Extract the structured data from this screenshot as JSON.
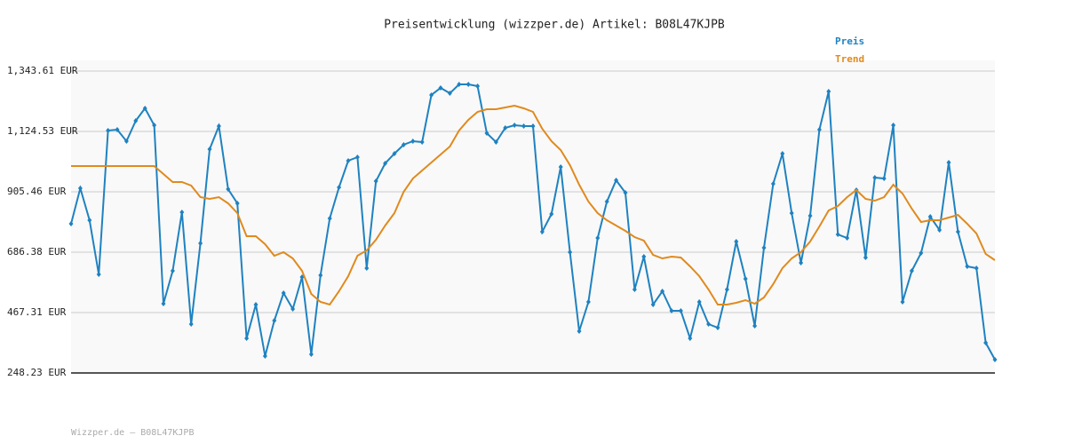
{
  "chart_data": {
    "type": "line",
    "title": "Preisentwicklung (wizzper.de) Artikel: B08L47KJPB",
    "footer": "Wizzper.de – B08L47KJPB",
    "ylim": [
      248.23,
      1343.61
    ],
    "yticks": [
      {
        "value": 248.23,
        "label": "248.23 EUR"
      },
      {
        "value": 467.31,
        "label": "467.31 EUR"
      },
      {
        "value": 686.38,
        "label": "686.38 EUR"
      },
      {
        "value": 905.46,
        "label": "905.46 EUR"
      },
      {
        "value": 1124.53,
        "label": "1,124.53 EUR"
      },
      {
        "value": 1343.61,
        "label": "1,343.61 EUR"
      }
    ],
    "grid": true,
    "legend": "top-right",
    "series": [
      {
        "name": "Preis",
        "color": "#1f82c0",
        "markers": true,
        "values": [
          789.5,
          918.3,
          802.4,
          605.8,
          1127.7,
          1130.9,
          1089.1,
          1163.2,
          1208.3,
          1147.1,
          499.5,
          618.7,
          831.4,
          425.4,
          718.6,
          1060.1,
          1143.9,
          915.1,
          863.6,
          373.9,
          496.3,
          309.4,
          438.3,
          538.2,
          480.2,
          596.2,
          315.9,
          602.6,
          808.8,
          921.6,
          1018.2,
          1031.1,
          628.4,
          944.1,
          1008.5,
          1044.0,
          1076.2,
          1089.1,
          1085.9,
          1256.6,
          1282.4,
          1263.1,
          1295.3,
          1295.3,
          1288.8,
          1118.1,
          1085.9,
          1137.4,
          1147.1,
          1143.9,
          1143.9,
          760.5,
          824.9,
          995.7,
          686.4,
          399.6,
          506.0,
          737.9,
          870.0,
          947.3,
          902.2,
          551.1,
          670.3,
          496.3,
          544.6,
          473.7,
          473.7,
          373.9,
          506.0,
          425.4,
          412.5,
          551.1,
          725.0,
          589.7,
          419.0,
          702.5,
          934.4,
          1044.0,
          828.1,
          647.7,
          818.5,
          1130.9,
          1269.5,
          750.8,
          737.9,
          911.9,
          667.0,
          957.0,
          953.8,
          1147.1,
          506.0,
          618.7,
          683.1,
          815.2,
          766.9,
          1011.7,
          760.5,
          634.8,
          628.4,
          357.7,
          296.5
        ]
      },
      {
        "name": "Trend",
        "color": "#e08a1e",
        "markers": false,
        "values": [
          998.9,
          998.9,
          998.9,
          998.9,
          998.9,
          998.9,
          998.9,
          998.9,
          998.9,
          998.9,
          969.9,
          940.9,
          940.9,
          928.0,
          886.1,
          879.7,
          886.1,
          863.6,
          828.1,
          744.3,
          744.3,
          715.4,
          673.5,
          686.4,
          663.8,
          618.7,
          534.9,
          506.0,
          496.3,
          544.6,
          599.4,
          673.5,
          692.8,
          731.5,
          783.0,
          828.1,
          905.4,
          953.8,
          982.7,
          1011.7,
          1040.8,
          1069.7,
          1127.7,
          1166.4,
          1195.4,
          1205.0,
          1205.0,
          1211.5,
          1218.0,
          1208.3,
          1195.4,
          1134.2,
          1089.1,
          1056.8,
          1002.1,
          931.2,
          870.0,
          828.1,
          802.4,
          783.0,
          763.7,
          741.1,
          728.2,
          676.7,
          663.8,
          670.3,
          667.0,
          634.8,
          599.4,
          551.1,
          496.3,
          496.3,
          502.7,
          512.4,
          499.5,
          522.0,
          570.4,
          628.4,
          663.8,
          686.4,
          725.0,
          779.8,
          837.8,
          853.9,
          886.1,
          911.9,
          879.7,
          873.2,
          886.1,
          931.2,
          899.0,
          844.2,
          795.9,
          802.4,
          802.4,
          812.0,
          821.7,
          789.5,
          754.0,
          680.0,
          657.4
        ]
      }
    ]
  }
}
